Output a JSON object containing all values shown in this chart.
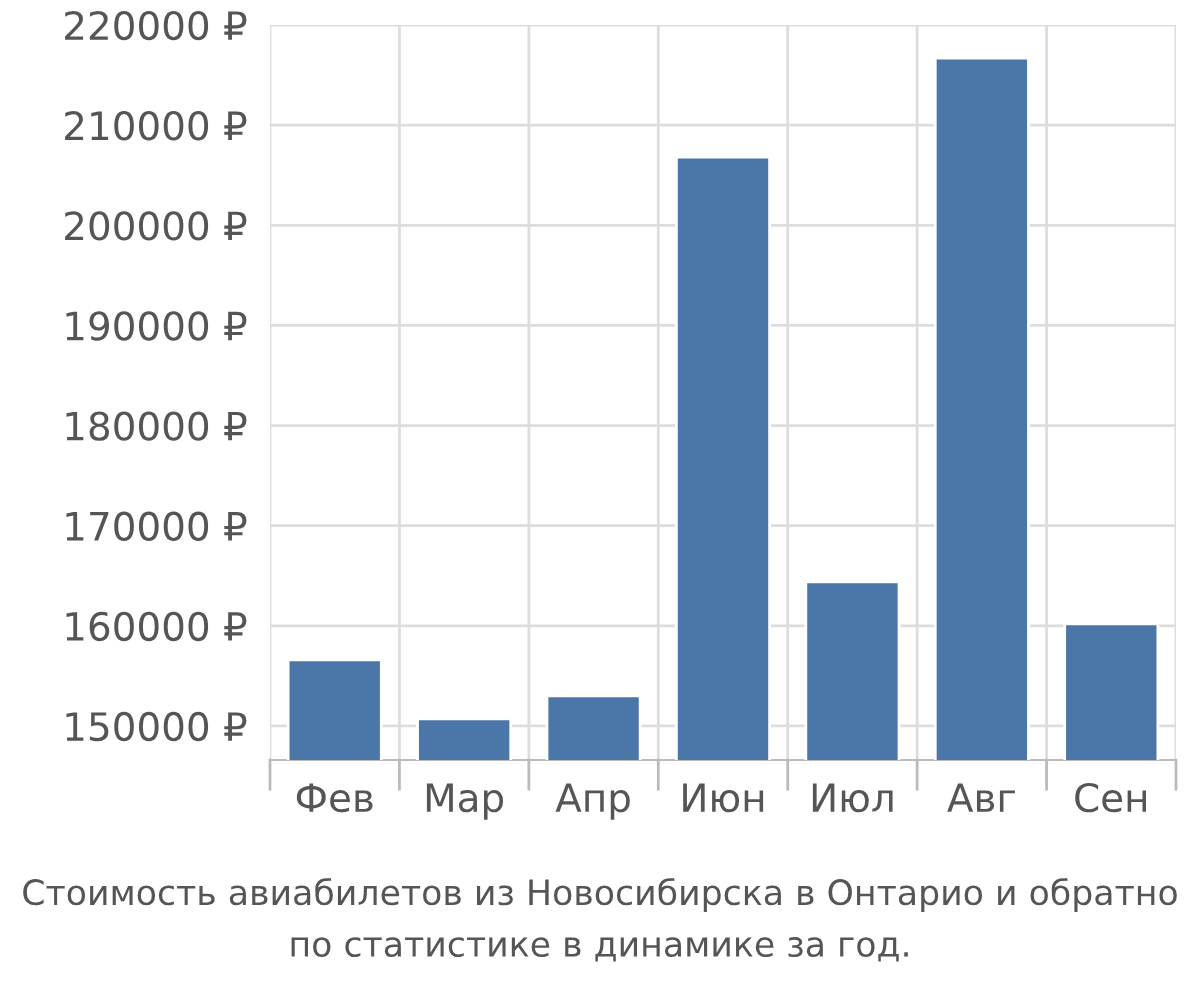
{
  "chart_data": {
    "type": "bar",
    "categories": [
      "Фев",
      "Мар",
      "Апр",
      "Июн",
      "Июл",
      "Авг",
      "Сен"
    ],
    "values": [
      156600,
      150700,
      153000,
      206800,
      164400,
      216700,
      160200
    ],
    "color": "#4a76a8",
    "ylim": [
      146600,
      220000
    ],
    "yticks": [
      {
        "value": 150000,
        "label": "150000 ₽"
      },
      {
        "value": 160000,
        "label": "160000 ₽"
      },
      {
        "value": 170000,
        "label": "170000 ₽"
      },
      {
        "value": 180000,
        "label": "180000 ₽"
      },
      {
        "value": 190000,
        "label": "190000 ₽"
      },
      {
        "value": 200000,
        "label": "200000 ₽"
      },
      {
        "value": 210000,
        "label": "210000 ₽"
      },
      {
        "value": 220000,
        "label": "220000 ₽"
      }
    ],
    "grid": true,
    "annotations": [
      "Стоимость авиабилетов из Новосибирска в Онтарио и обратно",
      "по статистике в динамике за год."
    ]
  }
}
